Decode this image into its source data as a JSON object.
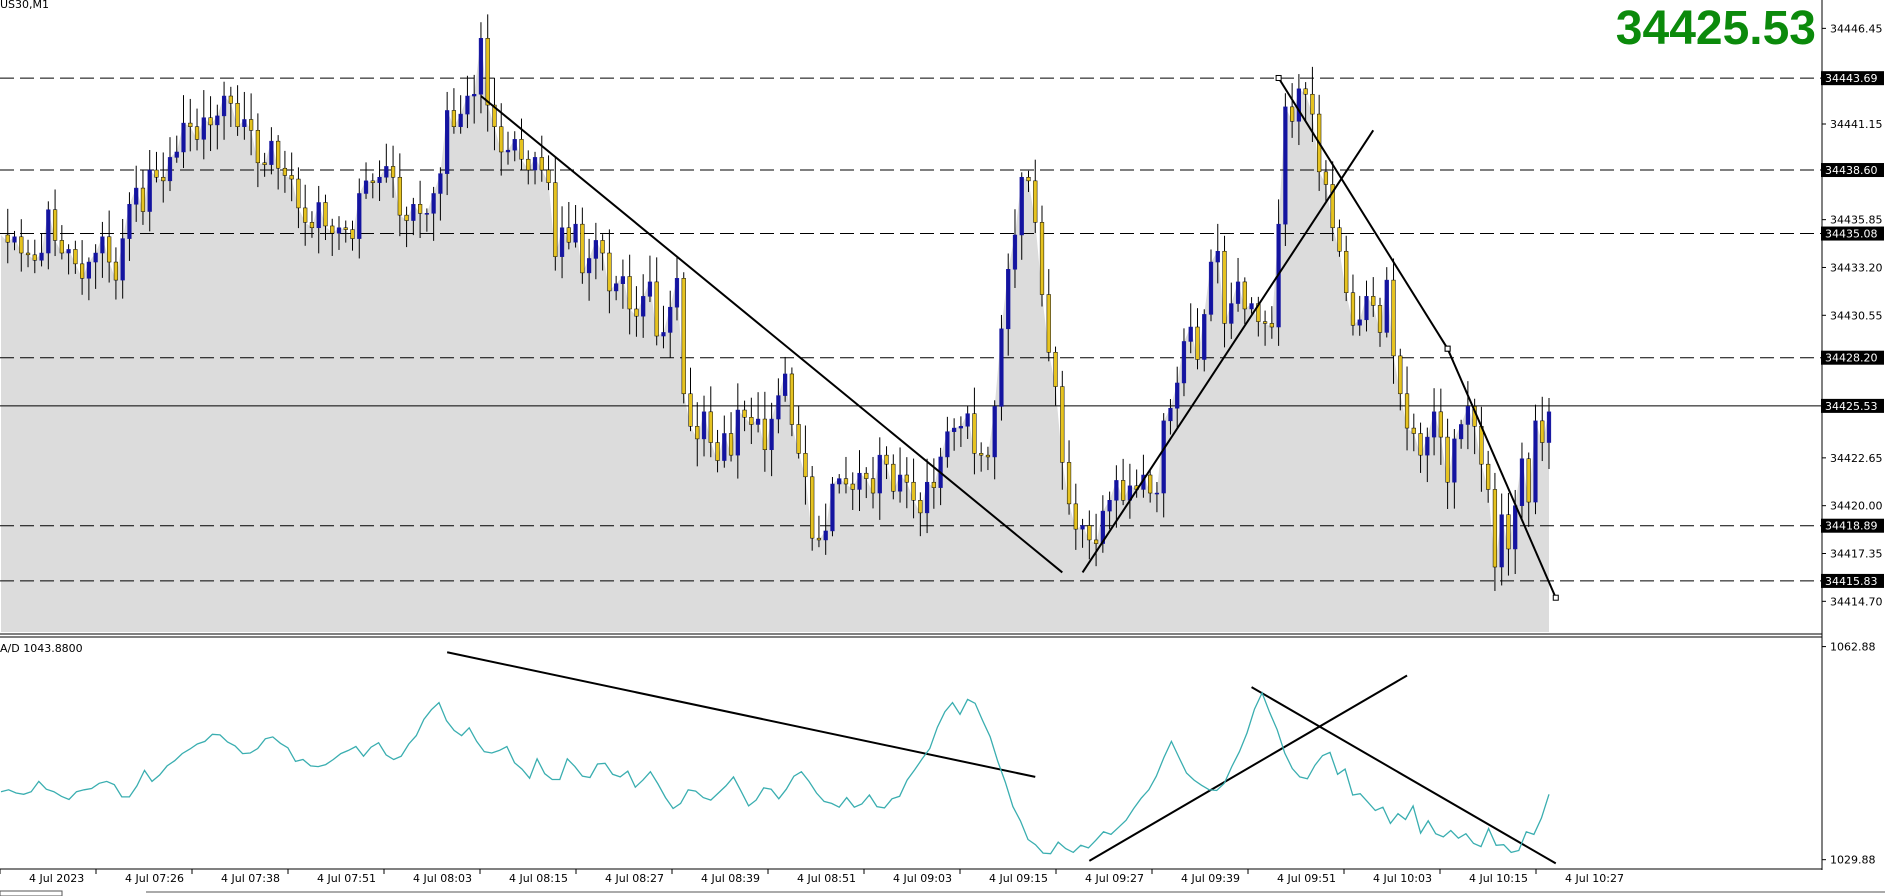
{
  "chart_data": {
    "type": "candlestick",
    "symbol_label": "US30,M1",
    "current_price": "34425.53",
    "colors": {
      "up": "#1414a0",
      "down": "#e6c320",
      "area": "#dcdcdc",
      "indicator": "#3aaeb0",
      "big_price": "#0b8a0b",
      "lines": "#000000"
    },
    "price_axis": {
      "range": [
        34413.0,
        34447.8
      ],
      "ticks": [
        "34446.45",
        "34441.15",
        "34435.85",
        "34433.20",
        "34430.55",
        "34422.65",
        "34420.00",
        "34417.35",
        "34414.70"
      ]
    },
    "level_labels": [
      "34443.69",
      "34438.60",
      "34435.08",
      "34428.20",
      "34425.53",
      "34418.89",
      "34415.83"
    ],
    "levels": [
      {
        "price": 34443.69,
        "style": "dashed"
      },
      {
        "price": 34438.6,
        "style": "dashed"
      },
      {
        "price": 34435.08,
        "style": "dashed"
      },
      {
        "price": 34428.2,
        "style": "dashed"
      },
      {
        "price": 34425.53,
        "style": "solid"
      },
      {
        "price": 34418.89,
        "style": "dashed"
      },
      {
        "price": 34415.83,
        "style": "dashed"
      }
    ],
    "time_labels": [
      "4 Jul 2023",
      "4 Jul 07:26",
      "4 Jul 07:38",
      "4 Jul 07:51",
      "4 Jul 08:03",
      "4 Jul 08:15",
      "4 Jul 08:27",
      "4 Jul 08:39",
      "4 Jul 08:51",
      "4 Jul 09:03",
      "4 Jul 09:15",
      "4 Jul 09:27",
      "4 Jul 09:39",
      "4 Jul 09:51",
      "4 Jul 10:03",
      "4 Jul 10:15",
      "4 Jul 10:27"
    ],
    "price_path": [
      34435.0,
      34434.6,
      34434.9,
      34434.0,
      34433.9,
      34433.6,
      34434.0,
      34436.4,
      34434.7,
      34434.0,
      34434.2,
      34433.4,
      34432.6,
      34433.5,
      34434.0,
      34434.9,
      34433.5,
      34432.5,
      34434.8,
      34436.7,
      34437.6,
      34436.3,
      34438.6,
      34438.2,
      34438.0,
      34439.3,
      34439.6,
      34441.2,
      34441.0,
      34440.3,
      34441.5,
      34441.1,
      34441.6,
      34442.7,
      34442.3,
      34441.0,
      34441.4,
      34440.8,
      34439.0,
      34438.9,
      34440.2,
      34438.7,
      34438.3,
      34438.1,
      34436.5,
      34435.7,
      34435.4,
      34436.8,
      34435.5,
      34435.1,
      34435.4,
      34435.3,
      34434.8,
      34437.3,
      34438.0,
      34437.9,
      34438.2,
      34438.8,
      34438.2,
      34436.1,
      34435.8,
      34436.7,
      34436.2,
      34436.2,
      34437.3,
      34438.4,
      34441.9,
      34441.0,
      34441.7,
      34442.7,
      34442.8,
      34445.9,
      34442.2,
      34441.0,
      34439.6,
      34439.7,
      34440.3,
      34439.2,
      34438.6,
      34439.3,
      34438.6,
      34437.9,
      34433.8,
      34435.4,
      34434.6,
      34435.6,
      34432.9,
      34433.7,
      34434.7,
      34434.0,
      34431.9,
      34432.3,
      34432.7,
      34430.9,
      34430.5,
      34431.6,
      34432.4,
      34429.4,
      34429.6,
      34431.0,
      34432.6,
      34426.2,
      34424.4,
      34423.7,
      34425.2,
      34423.5,
      34422.5,
      34424.0,
      34422.8,
      34425.3,
      34424.9,
      34424.5,
      34424.8,
      34423.1,
      34424.8,
      34426.1,
      34427.3,
      34424.5,
      34422.9,
      34421.6,
      34418.2,
      34418.1,
      34418.6,
      34421.2,
      34421.5,
      34421.2,
      34420.9,
      34421.8,
      34421.5,
      34420.7,
      34422.8,
      34422.3,
      34420.8,
      34421.7,
      34421.3,
      34420.3,
      34419.6,
      34421.3,
      34421.0,
      34422.7,
      34424.1,
      34424.3,
      34424.4,
      34425.1,
      34422.9,
      34422.8,
      34422.7,
      34425.5,
      34429.8,
      34433.1,
      34435.0,
      34438.2,
      34438.0,
      34435.7,
      34431.7,
      34428.5,
      34426.6,
      34422.4,
      34420.1,
      34418.7,
      34418.9,
      34418.1,
      34417.9,
      34419.7,
      34420.3,
      34421.4,
      34420.3,
      34421.1,
      34420.9,
      34421.7,
      34420.7,
      34420.7,
      34424.7,
      34425.4,
      34426.8,
      34429.1,
      34429.9,
      34428.1,
      34430.6,
      34433.5,
      34434.1,
      34430.1,
      34431.2,
      34432.4,
      34430.9,
      34431.2,
      34430.2,
      34430.1,
      34429.9,
      34435.6,
      34442.1,
      34441.3,
      34443.1,
      34442.8,
      34441.7,
      34438.5,
      34437.8,
      34435.4,
      34434.1,
      34431.8,
      34430.0,
      34430.3,
      34431.6,
      34431.1,
      34429.6,
      34432.5,
      34428.3,
      34426.2,
      34424.3,
      34424.0,
      34422.8,
      34423.8,
      34425.2,
      34423.8,
      34421.3,
      34423.7,
      34424.5,
      34425.5,
      34424.4,
      34422.3,
      34420.9,
      34416.6,
      34419.5,
      34417.6,
      34420.0,
      34422.6,
      34420.2,
      34424.7,
      34423.5,
      34425.2
    ],
    "indicator": {
      "name": "A/D",
      "label": "A/D 1043.8800",
      "range": [
        1028.9,
        1063.9
      ],
      "tick_labels": [
        "1062.88",
        "1029.88"
      ],
      "ticks": [
        1062.88,
        1029.88
      ],
      "values": [
        1040.4,
        1040.7,
        1040.2,
        1040.0,
        1040.4,
        1042.0,
        1040.8,
        1040.4,
        1039.7,
        1039.2,
        1040.4,
        1040.7,
        1040.9,
        1041.7,
        1042.0,
        1041.5,
        1039.6,
        1039.6,
        1041.3,
        1043.7,
        1042.0,
        1043.0,
        1044.4,
        1045.2,
        1046.3,
        1047.0,
        1047.8,
        1048.2,
        1049.3,
        1049.2,
        1048.1,
        1047.5,
        1046.3,
        1046.4,
        1047.1,
        1048.6,
        1048.9,
        1047.9,
        1047.2,
        1045.1,
        1045.4,
        1044.4,
        1044.3,
        1044.6,
        1045.4,
        1046.3,
        1046.8,
        1047.4,
        1045.9,
        1047.3,
        1048.0,
        1046.1,
        1045.4,
        1045.9,
        1047.8,
        1049.1,
        1051.6,
        1053.1,
        1054.2,
        1051.4,
        1049.9,
        1049.1,
        1050.3,
        1048.2,
        1046.6,
        1046.4,
        1046.8,
        1047.4,
        1044.9,
        1043.9,
        1042.5,
        1045.5,
        1043.2,
        1042.3,
        1042.3,
        1045.5,
        1044.3,
        1042.8,
        1042.6,
        1044.7,
        1044.8,
        1043.1,
        1042.7,
        1043.6,
        1041.1,
        1042.2,
        1043.5,
        1041.6,
        1039.5,
        1037.8,
        1038.6,
        1040.7,
        1040.5,
        1039.5,
        1039.1,
        1040.2,
        1041.3,
        1042.7,
        1040.5,
        1038.2,
        1039.1,
        1041.0,
        1040.8,
        1039.3,
        1040.8,
        1042.8,
        1043.5,
        1042.0,
        1040.2,
        1038.9,
        1038.6,
        1038.0,
        1039.5,
        1038.0,
        1038.5,
        1039.9,
        1038.1,
        1037.9,
        1039.3,
        1039.7,
        1042.2,
        1043.8,
        1045.5,
        1047.1,
        1050.4,
        1052.8,
        1054.2,
        1052.4,
        1054.7,
        1054.1,
        1051.4,
        1048.9,
        1045.1,
        1041.9,
        1038.1,
        1035.9,
        1033.0,
        1032.2,
        1030.9,
        1030.8,
        1032.6,
        1031.6,
        1031.0,
        1032.1,
        1031.7,
        1032.9,
        1034.2,
        1033.8,
        1034.9,
        1036.0,
        1037.8,
        1039.4,
        1040.7,
        1042.8,
        1045.7,
        1048.2,
        1045.7,
        1043.3,
        1042.2,
        1041.4,
        1040.7,
        1040.6,
        1041.7,
        1044.3,
        1046.6,
        1049.5,
        1053.2,
        1055.7,
        1052.7,
        1050.0,
        1046.4,
        1044.0,
        1042.7,
        1042.4,
        1044.5,
        1046.0,
        1046.5,
        1043.1,
        1043.9,
        1039.9,
        1040.1,
        1038.8,
        1037.5,
        1038.0,
        1035.5,
        1037.0,
        1036.1,
        1038.2,
        1034.0,
        1035.9,
        1033.9,
        1033.4,
        1034.4,
        1033.2,
        1033.9,
        1032.4,
        1031.9,
        1034.7,
        1032.1,
        1032.2,
        1031.0,
        1031.3,
        1034.2,
        1033.8,
        1036.3,
        1040.0
      ]
    }
  }
}
